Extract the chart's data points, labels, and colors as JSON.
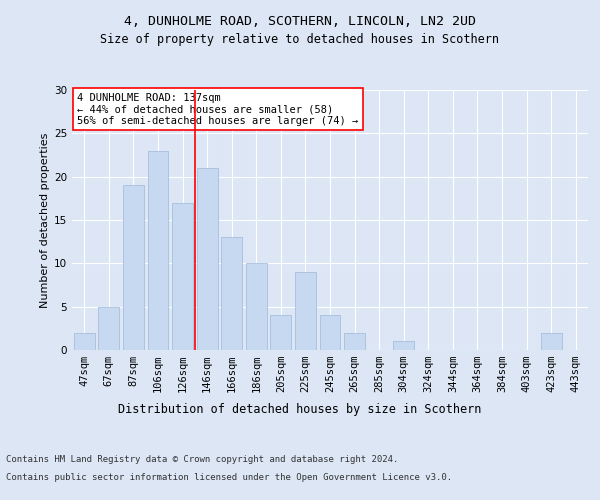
{
  "title1": "4, DUNHOLME ROAD, SCOTHERN, LINCOLN, LN2 2UD",
  "title2": "Size of property relative to detached houses in Scothern",
  "xlabel": "Distribution of detached houses by size in Scothern",
  "ylabel": "Number of detached properties",
  "categories": [
    "47sqm",
    "67sqm",
    "87sqm",
    "106sqm",
    "126sqm",
    "146sqm",
    "166sqm",
    "186sqm",
    "205sqm",
    "225sqm",
    "245sqm",
    "265sqm",
    "285sqm",
    "304sqm",
    "324sqm",
    "344sqm",
    "364sqm",
    "384sqm",
    "403sqm",
    "423sqm",
    "443sqm"
  ],
  "values": [
    2,
    5,
    19,
    23,
    17,
    21,
    13,
    10,
    4,
    9,
    4,
    2,
    0,
    1,
    0,
    0,
    0,
    0,
    0,
    2,
    0
  ],
  "bar_color": "#c6d9f0",
  "bar_edge_color": "#a0b8d8",
  "vline_x_index": 4.5,
  "vline_color": "red",
  "annotation_text": "4 DUNHOLME ROAD: 137sqm\n← 44% of detached houses are smaller (58)\n56% of semi-detached houses are larger (74) →",
  "annotation_box_color": "white",
  "annotation_box_edge": "red",
  "ylim": [
    0,
    30
  ],
  "yticks": [
    0,
    5,
    10,
    15,
    20,
    25,
    30
  ],
  "footer1": "Contains HM Land Registry data © Crown copyright and database right 2024.",
  "footer2": "Contains public sector information licensed under the Open Government Licence v3.0.",
  "bg_color": "#dce6f5",
  "plot_bg_color": "#dce6f5",
  "title1_fontsize": 9.5,
  "title2_fontsize": 8.5,
  "xlabel_fontsize": 8.5,
  "ylabel_fontsize": 8,
  "tick_fontsize": 7.5,
  "footer_fontsize": 6.5,
  "annot_fontsize": 7.5
}
